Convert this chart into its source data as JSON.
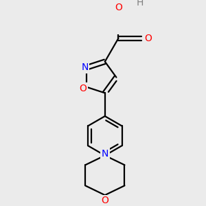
{
  "background_color": "#ebebeb",
  "bond_color": "#000000",
  "atom_colors": {
    "O": "#ff0000",
    "N": "#0000ff",
    "H": "#808080",
    "C": "#000000"
  },
  "line_width": 1.6,
  "font_size": 10,
  "fig_width": 3.0,
  "fig_height": 3.0,
  "dpi": 100,
  "xlim": [
    -1.8,
    1.8
  ],
  "ylim": [
    -3.2,
    2.2
  ]
}
